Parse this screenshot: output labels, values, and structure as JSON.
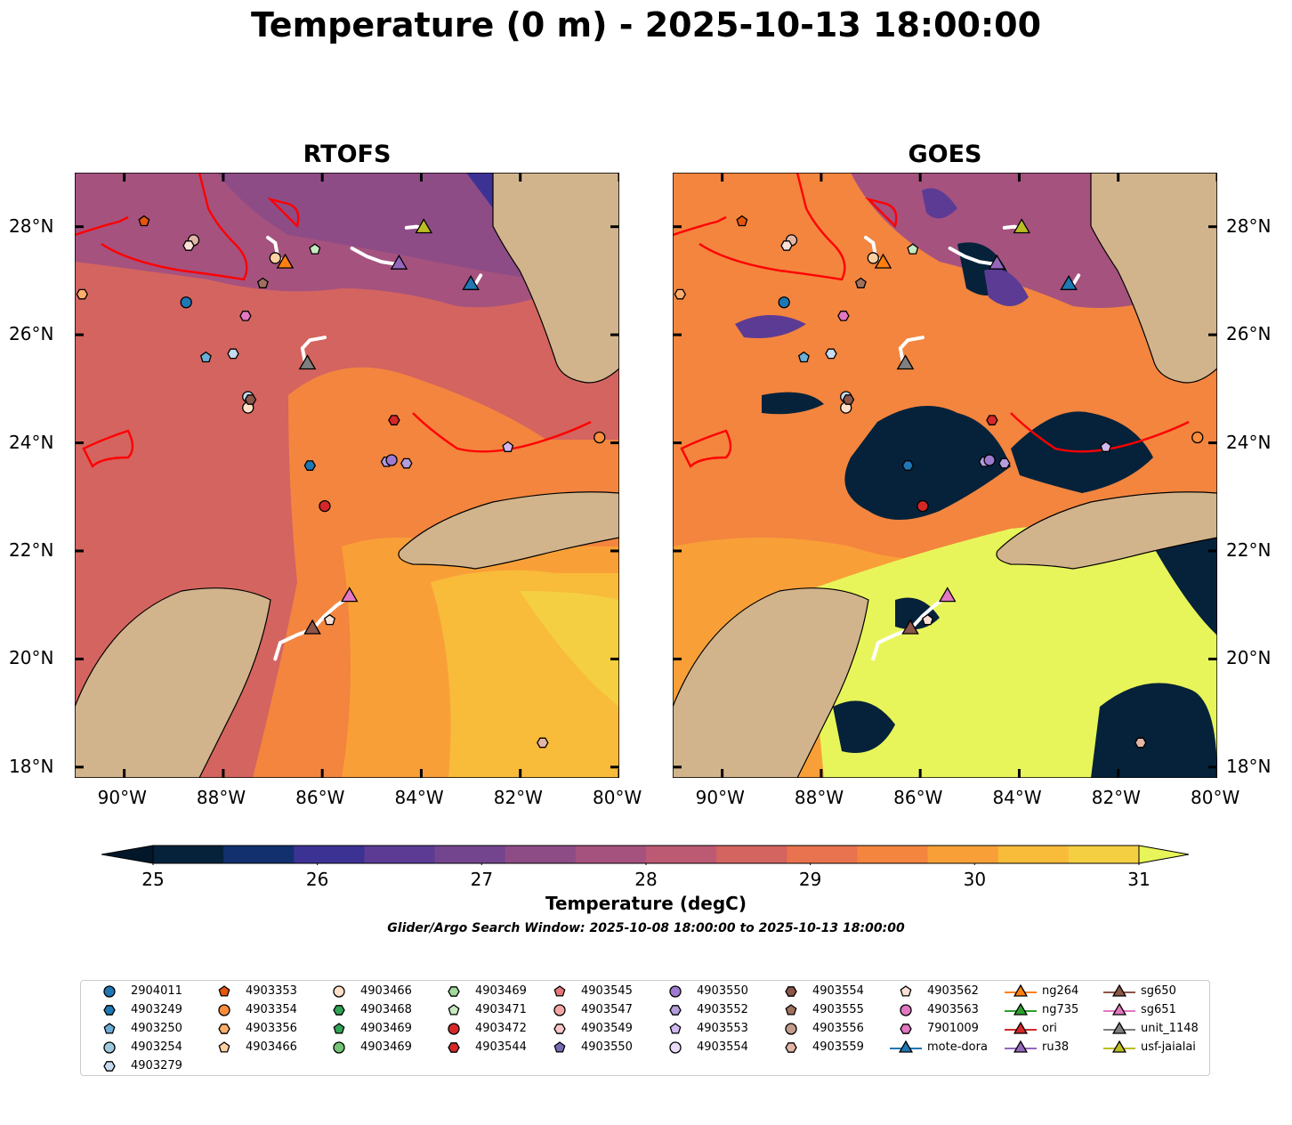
{
  "title": "Temperature (0 m) - 2025-10-13 18:00:00",
  "panels": [
    {
      "title": "RTOFS"
    },
    {
      "title": "GOES"
    }
  ],
  "axes": {
    "lat_labels": [
      "28°N",
      "26°N",
      "24°N",
      "22°N",
      "20°N",
      "18°N"
    ],
    "lon_labels": [
      "90°W",
      "88°W",
      "86°W",
      "84°W",
      "82°W",
      "80°W"
    ],
    "lon_range": [
      -91,
      -80
    ],
    "lat_range": [
      17.8,
      29
    ]
  },
  "colorbar": {
    "label": "Temperature (degC)",
    "ticks": [
      "25",
      "26",
      "27",
      "28",
      "29",
      "30",
      "31"
    ],
    "colors": [
      "#05223a",
      "#12306e",
      "#3c3294",
      "#5c3b95",
      "#74458f",
      "#8e4c86",
      "#a5527f",
      "#bd5a73",
      "#d4645f",
      "#e8734e",
      "#f3853f",
      "#f8a037",
      "#f8bb3a",
      "#f5cf42"
    ],
    "under_color": "#02182a",
    "over_color": "#e8f55a"
  },
  "subtitle": "Glider/Argo Search Window: 2025-10-08 18:00:00 to 2025-10-13 18:00:00",
  "legend": {
    "columns": [
      [
        {
          "label": "2904011",
          "shape": "circle",
          "color": "#1f77b4"
        },
        {
          "label": "4903249",
          "shape": "hexagon",
          "color": "#1f77b4"
        },
        {
          "label": "4903250",
          "shape": "pentagon",
          "color": "#6baed6"
        },
        {
          "label": "4903254",
          "shape": "circle",
          "color": "#9ecae1"
        },
        {
          "label": "4903279",
          "shape": "hexagon",
          "color": "#c6dbef"
        }
      ],
      [
        {
          "label": "4903353",
          "shape": "pentagon",
          "color": "#e6550d"
        },
        {
          "label": "4903354",
          "shape": "circle",
          "color": "#fd8d3c"
        },
        {
          "label": "4903356",
          "shape": "hexagon",
          "color": "#fdae6b"
        },
        {
          "label": "4903466",
          "shape": "pentagon",
          "color": "#fdd0a2"
        }
      ],
      [
        {
          "label": "4903466",
          "shape": "circle",
          "color": "#fee0c8"
        },
        {
          "label": "4903468",
          "shape": "hexagon",
          "color": "#31a354"
        },
        {
          "label": "4903469",
          "shape": "pentagon",
          "color": "#31a354"
        },
        {
          "label": "4903469",
          "shape": "circle",
          "color": "#74c476"
        }
      ],
      [
        {
          "label": "4903469",
          "shape": "hexagon",
          "color": "#a1d99b"
        },
        {
          "label": "4903471",
          "shape": "pentagon",
          "color": "#c7e9c0"
        },
        {
          "label": "4903472",
          "shape": "circle",
          "color": "#d62728"
        },
        {
          "label": "4903544",
          "shape": "hexagon",
          "color": "#d62728"
        }
      ],
      [
        {
          "label": "4903545",
          "shape": "pentagon",
          "color": "#e7777a"
        },
        {
          "label": "4903547",
          "shape": "circle",
          "color": "#f4a6a6"
        },
        {
          "label": "4903549",
          "shape": "hexagon",
          "color": "#f9c6c6"
        },
        {
          "label": "4903550",
          "shape": "pentagon",
          "color": "#756bb1"
        }
      ],
      [
        {
          "label": "4903550",
          "shape": "circle",
          "color": "#9e7ad1"
        },
        {
          "label": "4903552",
          "shape": "hexagon",
          "color": "#b39ddb"
        },
        {
          "label": "4903553",
          "shape": "pentagon",
          "color": "#d1b8f0"
        },
        {
          "label": "4903554",
          "shape": "circle",
          "color": "#eadcf8"
        }
      ],
      [
        {
          "label": "4903554",
          "shape": "hexagon",
          "color": "#8c564b"
        },
        {
          "label": "4903555",
          "shape": "pentagon",
          "color": "#a0705f"
        },
        {
          "label": "4903556",
          "shape": "circle",
          "color": "#c49c8c"
        },
        {
          "label": "4903559",
          "shape": "hexagon",
          "color": "#e2b6a6"
        }
      ],
      [
        {
          "label": "4903562",
          "shape": "pentagon",
          "color": "#fbe0d6"
        },
        {
          "label": "4903563",
          "shape": "circle",
          "color": "#e377c2"
        },
        {
          "label": "7901009",
          "shape": "hexagon",
          "color": "#e377c2"
        },
        {
          "label": "mote-dora",
          "shape": "triangle-line",
          "color": "#1f77b4"
        }
      ],
      [
        {
          "label": "ng264",
          "shape": "triangle-line",
          "color": "#ff7f0e"
        },
        {
          "label": "ng735",
          "shape": "triangle-line",
          "color": "#2ca02c"
        },
        {
          "label": "ori",
          "shape": "triangle-line",
          "color": "#d62728"
        },
        {
          "label": "ru38",
          "shape": "triangle-line",
          "color": "#9467bd"
        }
      ],
      [
        {
          "label": "sg650",
          "shape": "triangle-line",
          "color": "#8c564b"
        },
        {
          "label": "sg651",
          "shape": "triangle-line",
          "color": "#e377c2"
        },
        {
          "label": "unit_1148",
          "shape": "triangle-line",
          "color": "#7f7f7f"
        },
        {
          "label": "usf-jaialai",
          "shape": "triangle-line",
          "color": "#bcbd22"
        }
      ]
    ]
  },
  "markers": [
    {
      "lon": -88.75,
      "lat": 26.6,
      "shape": "circle",
      "color": "#1f77b4"
    },
    {
      "lon": -88.35,
      "lat": 25.58,
      "shape": "pentagon",
      "color": "#6baed6"
    },
    {
      "lon": -87.8,
      "lat": 25.65,
      "shape": "hexagon",
      "color": "#c6dbef"
    },
    {
      "lon": -89.6,
      "lat": 28.1,
      "shape": "pentagon",
      "color": "#e6550d"
    },
    {
      "lon": -90.85,
      "lat": 26.75,
      "shape": "hexagon",
      "color": "#fdae6b"
    },
    {
      "lon": -88.6,
      "lat": 27.75,
      "shape": "circle",
      "color": "#e2b6a6"
    },
    {
      "lon": -88.7,
      "lat": 27.65,
      "shape": "hexagon",
      "color": "#fbe0d6"
    },
    {
      "lon": -87.5,
      "lat": 24.85,
      "shape": "circle",
      "color": "#c6dbef"
    },
    {
      "lon": -87.5,
      "lat": 24.65,
      "shape": "circle",
      "color": "#fee0c8"
    },
    {
      "lon": -87.45,
      "lat": 24.8,
      "shape": "hexagon",
      "color": "#8c564b"
    },
    {
      "lon": -87.55,
      "lat": 26.35,
      "shape": "hexagon",
      "color": "#e377c2"
    },
    {
      "lon": -87.2,
      "lat": 26.95,
      "shape": "pentagon",
      "color": "#a0705f"
    },
    {
      "lon": -86.15,
      "lat": 27.58,
      "shape": "pentagon",
      "color": "#c7e9c0"
    },
    {
      "lon": -86.95,
      "lat": 27.42,
      "shape": "circle",
      "color": "#fdd0a2"
    },
    {
      "lon": -86.25,
      "lat": 23.58,
      "shape": "hexagon",
      "color": "#1f77b4"
    },
    {
      "lon": -85.95,
      "lat": 22.83,
      "shape": "circle",
      "color": "#d62728"
    },
    {
      "lon": -84.55,
      "lat": 24.42,
      "shape": "hexagon",
      "color": "#d62728"
    },
    {
      "lon": -84.7,
      "lat": 23.65,
      "shape": "hexagon",
      "color": "#b39ddb"
    },
    {
      "lon": -84.6,
      "lat": 23.68,
      "shape": "circle",
      "color": "#9e7ad1"
    },
    {
      "lon": -84.3,
      "lat": 23.62,
      "shape": "hexagon",
      "color": "#b39ddb"
    },
    {
      "lon": -82.25,
      "lat": 23.92,
      "shape": "pentagon",
      "color": "#d1b8f0"
    },
    {
      "lon": -80.4,
      "lat": 24.1,
      "shape": "circle",
      "color": "#fd8d3c"
    },
    {
      "lon": -81.55,
      "lat": 18.45,
      "shape": "hexagon",
      "color": "#e2b6a6"
    },
    {
      "lon": -85.85,
      "lat": 20.72,
      "shape": "pentagon",
      "color": "#fbe0d6"
    }
  ],
  "gliders": [
    {
      "name": "ng264",
      "lon": -86.75,
      "lat": 27.32,
      "color": "#ff7f0e",
      "track": [
        [
          -87.1,
          27.8
        ],
        [
          -86.95,
          27.7
        ],
        [
          -86.9,
          27.45
        ],
        [
          -86.75,
          27.32
        ]
      ]
    },
    {
      "name": "usf-jaialai",
      "lon": -83.95,
      "lat": 27.97,
      "color": "#bcbd22",
      "track": [
        [
          -84.3,
          27.98
        ],
        [
          -84.1,
          28.0
        ],
        [
          -83.95,
          27.97
        ]
      ]
    },
    {
      "name": "ru38",
      "lon": -84.45,
      "lat": 27.3,
      "color": "#9467bd",
      "track": [
        [
          -85.4,
          27.6
        ],
        [
          -85.1,
          27.45
        ],
        [
          -84.8,
          27.35
        ],
        [
          -84.45,
          27.3
        ]
      ]
    },
    {
      "name": "mote-dora",
      "lon": -83.0,
      "lat": 26.92,
      "color": "#1f77b4",
      "track": [
        [
          -82.8,
          27.1
        ],
        [
          -82.9,
          26.95
        ],
        [
          -83.0,
          26.92
        ]
      ]
    },
    {
      "name": "unit_1148",
      "lon": -86.3,
      "lat": 25.45,
      "color": "#7f7f7f",
      "track": [
        [
          -85.95,
          25.95
        ],
        [
          -86.25,
          25.9
        ],
        [
          -86.4,
          25.75
        ],
        [
          -86.35,
          25.5
        ],
        [
          -86.3,
          25.45
        ]
      ]
    },
    {
      "name": "sg651",
      "lon": -85.45,
      "lat": 21.15,
      "color": "#e377c2",
      "track": [
        [
          -86.2,
          20.55
        ],
        [
          -85.95,
          20.8
        ],
        [
          -85.7,
          21.0
        ],
        [
          -85.45,
          21.15
        ]
      ]
    },
    {
      "name": "sg650",
      "lon": -86.2,
      "lat": 20.55,
      "color": "#8c564b",
      "track": [
        [
          -86.95,
          20.0
        ],
        [
          -86.85,
          20.3
        ],
        [
          -86.5,
          20.45
        ],
        [
          -86.2,
          20.55
        ]
      ]
    }
  ]
}
